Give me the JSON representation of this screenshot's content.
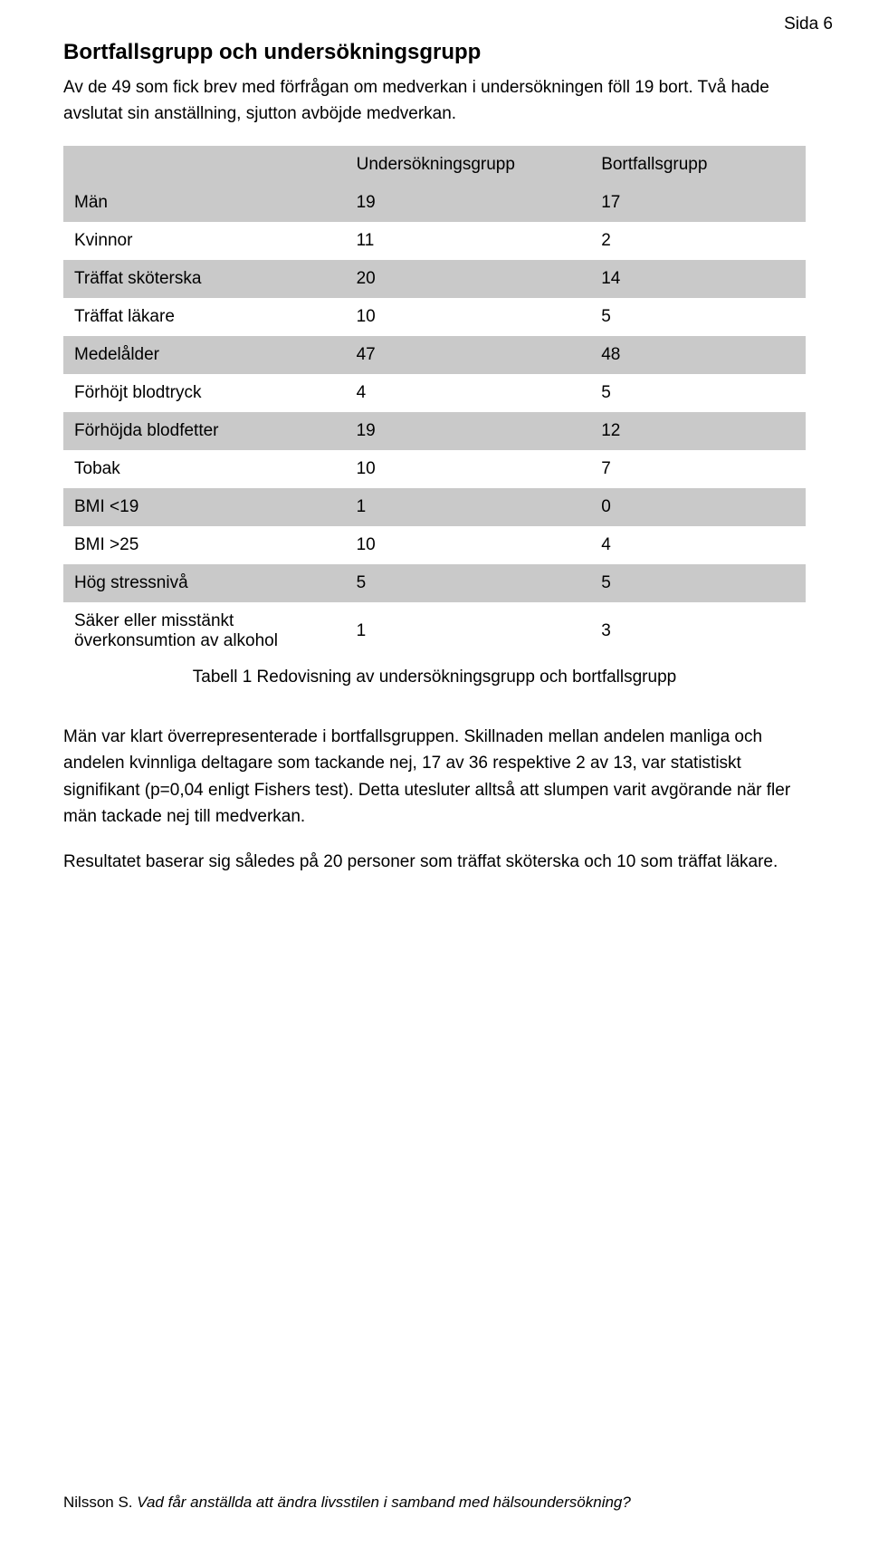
{
  "page_number": "Sida 6",
  "section_title": "Bortfallsgrupp och undersökningsgrupp",
  "intro_text": "Av de 49 som fick brev med förfrågan om medverkan i undersökningen föll 19 bort. Två hade avslutat sin anställning, sjutton avböjde medverkan.",
  "table": {
    "type": "table",
    "background_color": "#ffffff",
    "shade_color": "#c9c9c9",
    "text_color": "#000000",
    "fontsize": 19,
    "col_widths_pct": [
      38,
      33,
      29
    ],
    "columns": [
      "",
      "Undersökningsgrupp",
      "Bortfallsgrupp"
    ],
    "rows_data": [
      {
        "label": "Män",
        "c1": "19",
        "c2": "17",
        "shade": true
      },
      {
        "label": "Kvinnor",
        "c1": "11",
        "c2": "2",
        "shade": false
      },
      {
        "label": "Träffat sköterska",
        "c1": "20",
        "c2": "14",
        "shade": true
      },
      {
        "label": "Träffat läkare",
        "c1": "10",
        "c2": "5",
        "shade": false
      },
      {
        "label": "Medelålder",
        "c1": "47",
        "c2": "48",
        "shade": true
      },
      {
        "label": "Förhöjt blodtryck",
        "c1": "4",
        "c2": "5",
        "shade": false
      },
      {
        "label": "Förhöjda blodfetter",
        "c1": "19",
        "c2": "12",
        "shade": true
      },
      {
        "label": "Tobak",
        "c1": "10",
        "c2": "7",
        "shade": false
      },
      {
        "label": "BMI <19",
        "c1": "1",
        "c2": "0",
        "shade": true
      },
      {
        "label": "BMI >25",
        "c1": "10",
        "c2": "4",
        "shade": false
      },
      {
        "label": "Hög stressnivå",
        "c1": "5",
        "c2": "5",
        "shade": true
      },
      {
        "label": "Säker eller misstänkt överkonsumtion av alkohol",
        "c1": "1",
        "c2": "3",
        "shade": false
      }
    ],
    "caption": "Tabell 1 Redovisning av undersökningsgrupp och bortfallsgrupp"
  },
  "para1": "Män var klart överrepresenterade i bortfallsgruppen. Skillnaden mellan andelen manliga och andelen kvinnliga deltagare som tackande nej, 17 av 36 respektive 2 av 13, var statistiskt signifikant (p=0,04 enligt Fishers test). Detta utesluter alltså att slumpen varit avgörande när fler män tackade nej till medverkan.",
  "para2": "Resultatet baserar sig således på 20 personer som träffat sköterska och 10 som träffat läkare.",
  "footer": {
    "author": "Nilsson S. ",
    "title": "Vad får anställda att ändra livsstilen i samband med hälsoundersökning?"
  }
}
